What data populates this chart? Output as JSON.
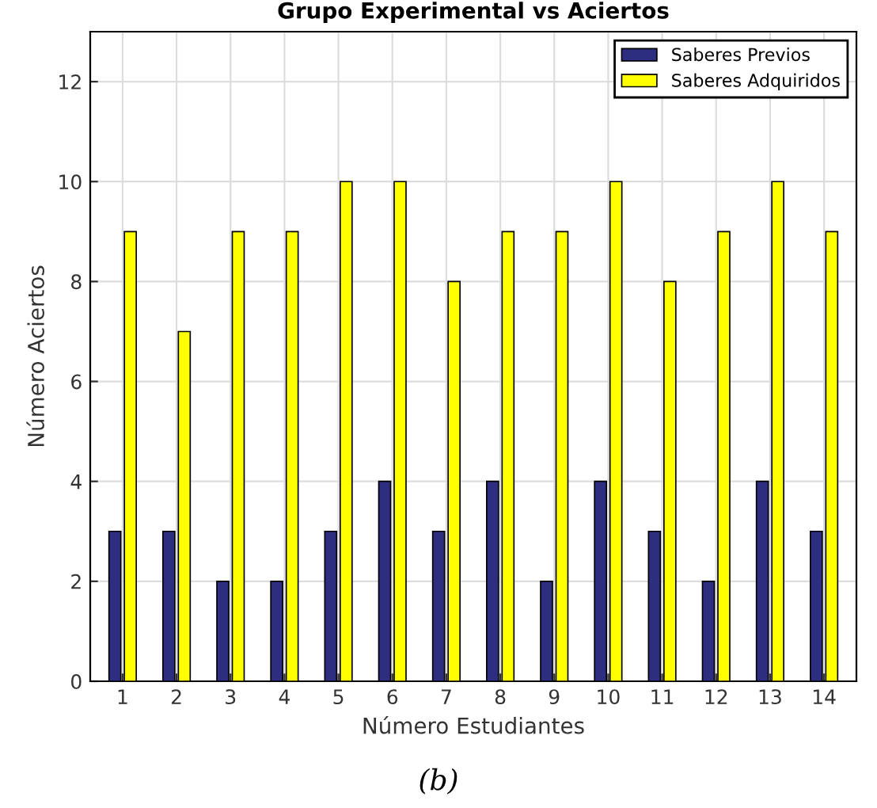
{
  "chart_data": {
    "type": "bar",
    "title": "Grupo Experimental vs Aciertos",
    "xlabel": "Número Estudiantes",
    "ylabel": "Número Aciertos",
    "categories": [
      "1",
      "2",
      "3",
      "4",
      "5",
      "6",
      "7",
      "8",
      "9",
      "10",
      "11",
      "12",
      "13",
      "14"
    ],
    "series": [
      {
        "name": "Saberes Previos",
        "color": "#2e2e80",
        "values": [
          3,
          3,
          2,
          2,
          3,
          4,
          3,
          4,
          2,
          4,
          3,
          2,
          4,
          3
        ]
      },
      {
        "name": "Saberes Adquiridos",
        "color": "#ffff00",
        "values": [
          9,
          7,
          9,
          9,
          10,
          10,
          8,
          9,
          9,
          10,
          8,
          9,
          10,
          9
        ]
      }
    ],
    "ylim": [
      0,
      13
    ],
    "yticks": [
      0,
      2,
      4,
      6,
      8,
      10,
      12
    ],
    "grid": true,
    "legend": "top right",
    "annotations": [
      "(b)"
    ]
  }
}
